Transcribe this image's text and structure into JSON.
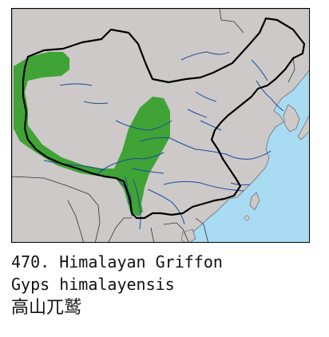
{
  "caption": {
    "title": "470. Himalayan Griffon",
    "scientific_name": "Gyps himalayensis",
    "chinese_name": "高山兀鹫"
  },
  "colors": {
    "land": "#cdc9c9",
    "sea": "#a9dbf2",
    "range": "#3fa335",
    "river": "#1f4a9a",
    "border": "#000000"
  }
}
